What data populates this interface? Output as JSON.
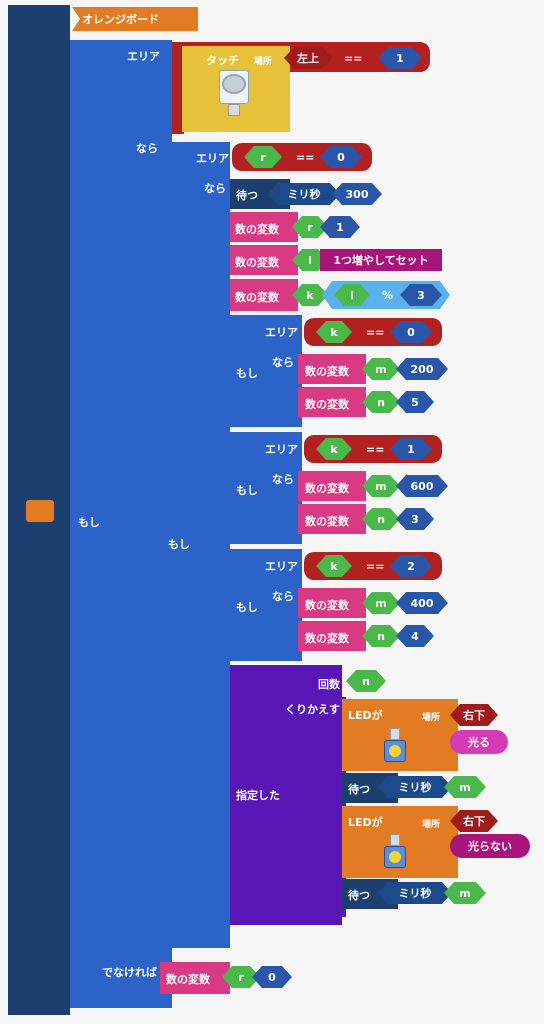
{
  "board": {
    "label": "オレンジボード"
  },
  "if_outer": {
    "label": "もし",
    "area_label": "エリア",
    "then_label": "なら",
    "else_label": "でなければ",
    "touch": {
      "label": "タッチ",
      "location_label": "場所",
      "location": "左上",
      "op": "==",
      "value": "1"
    },
    "else_block": {
      "label": "数の変数",
      "var": "r",
      "value": "0"
    }
  },
  "if_inner": {
    "label": "もし",
    "area_label": "エリア",
    "then_label": "なら",
    "cond": {
      "var": "r",
      "op": "==",
      "value": "0"
    },
    "wait": {
      "label": "待つ",
      "unit": "ミリ秒",
      "value": "300"
    },
    "set_r": {
      "label": "数の変数",
      "var": "r",
      "value": "1"
    },
    "inc_i": {
      "label": "数の変数",
      "var": "i",
      "action": "1つ増やしてセット"
    },
    "set_k": {
      "label": "数の変数",
      "var": "k",
      "lhs": "i",
      "op": "%",
      "rhs": "3"
    }
  },
  "branches": [
    {
      "label": "もし",
      "area_label": "エリア",
      "then_label": "なら",
      "var": "k",
      "op": "==",
      "value": "0",
      "sets": [
        {
          "label": "数の変数",
          "var": "m",
          "value": "200"
        },
        {
          "label": "数の変数",
          "var": "n",
          "value": "5"
        }
      ]
    },
    {
      "label": "もし",
      "area_label": "エリア",
      "then_label": "なら",
      "var": "k",
      "op": "==",
      "value": "1",
      "sets": [
        {
          "label": "数の変数",
          "var": "m",
          "value": "600"
        },
        {
          "label": "数の変数",
          "var": "n",
          "value": "3"
        }
      ]
    },
    {
      "label": "もし",
      "area_label": "エリア",
      "then_label": "なら",
      "var": "k",
      "op": "==",
      "value": "2",
      "sets": [
        {
          "label": "数の変数",
          "var": "m",
          "value": "400"
        },
        {
          "label": "数の変数",
          "var": "n",
          "value": "4"
        }
      ]
    }
  ],
  "repeat": {
    "label": "指定した",
    "count_label": "回数",
    "count_var": "n",
    "loop_label": "くりかえす",
    "led_on": {
      "label": "LEDが",
      "location_label": "場所",
      "location": "右下",
      "state": "光る"
    },
    "wait1": {
      "label": "待つ",
      "unit": "ミリ秒",
      "var": "m"
    },
    "led_off": {
      "label": "LEDが",
      "location_label": "場所",
      "location": "右下",
      "state": "光らない"
    },
    "wait2": {
      "label": "待つ",
      "unit": "ミリ秒",
      "var": "m"
    }
  }
}
